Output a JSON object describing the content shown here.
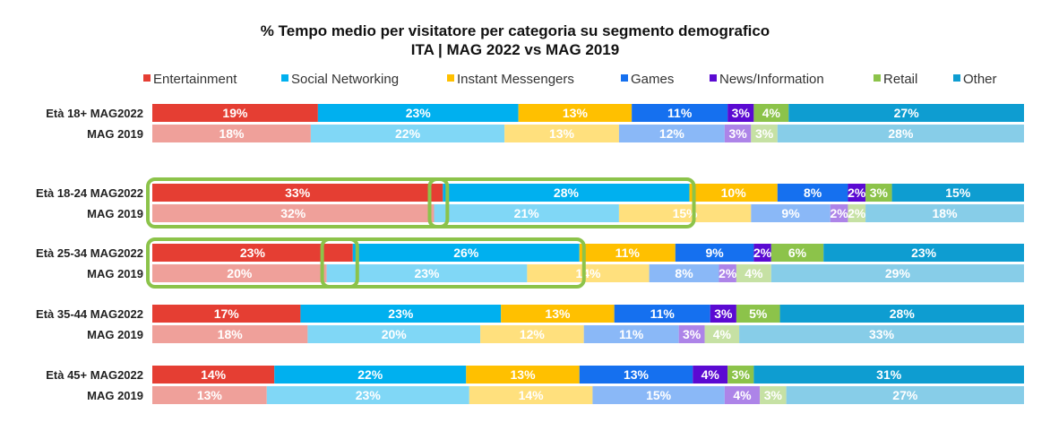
{
  "chart_data": {
    "type": "bar",
    "orientation": "horizontal",
    "stacked": "100%",
    "title": "% Tempo medio per visitatore per categoria su segmento demografico",
    "subtitle": "ITA | MAG 2022 vs MAG 2019",
    "legend_position": "top",
    "grid": false,
    "categories": [
      "Entertainment",
      "Social Networking",
      "Instant Messengers",
      "Games",
      "News/Information",
      "Retail",
      "Other"
    ],
    "colors_2022": [
      "#e53e33",
      "#00b0ef",
      "#ffc000",
      "#1570ef",
      "#5b0ad2",
      "#8cc34a",
      "#0e9dd1"
    ],
    "colors_2019": [
      "#efa09a",
      "#80d7f6",
      "#ffe07d",
      "#8ab8f7",
      "#ad84e8",
      "#c6e1a4",
      "#87cde8"
    ],
    "groups": [
      {
        "label": "Età 18+",
        "rows": [
          {
            "label": "MAG2022",
            "values": [
              19,
              23,
              13,
              11,
              3,
              4,
              27
            ]
          },
          {
            "label": "MAG 2019",
            "values": [
              18,
              22,
              13,
              12,
              3,
              3,
              28
            ]
          }
        ]
      },
      {
        "label": "Età 18-24",
        "rows": [
          {
            "label": "MAG2022",
            "values": [
              33,
              28,
              10,
              8,
              2,
              3,
              15
            ]
          },
          {
            "label": "MAG 2019",
            "values": [
              32,
              21,
              15,
              9,
              2,
              2,
              18
            ]
          }
        ]
      },
      {
        "label": "Età 25-34",
        "rows": [
          {
            "label": "MAG2022",
            "values": [
              23,
              26,
              11,
              9,
              2,
              6,
              23
            ]
          },
          {
            "label": "MAG 2019",
            "values": [
              20,
              23,
              14,
              8,
              2,
              4,
              29
            ]
          }
        ]
      },
      {
        "label": "Età 35-44",
        "rows": [
          {
            "label": "MAG2022",
            "values": [
              17,
              23,
              13,
              11,
              3,
              5,
              28
            ]
          },
          {
            "label": "MAG 2019",
            "values": [
              18,
              20,
              12,
              11,
              3,
              4,
              33
            ]
          }
        ]
      },
      {
        "label": "Età 45+",
        "rows": [
          {
            "label": "MAG2022",
            "values": [
              14,
              22,
              13,
              13,
              4,
              3,
              31
            ]
          },
          {
            "label": "MAG 2019",
            "values": [
              13,
              23,
              14,
              15,
              4,
              3,
              27
            ]
          }
        ]
      }
    ],
    "highlights": [
      {
        "group": 1,
        "category": 0
      },
      {
        "group": 1,
        "category": 1
      },
      {
        "group": 2,
        "category": 0
      },
      {
        "group": 2,
        "category": 1
      }
    ],
    "highlight_color": "#8cc34a"
  }
}
